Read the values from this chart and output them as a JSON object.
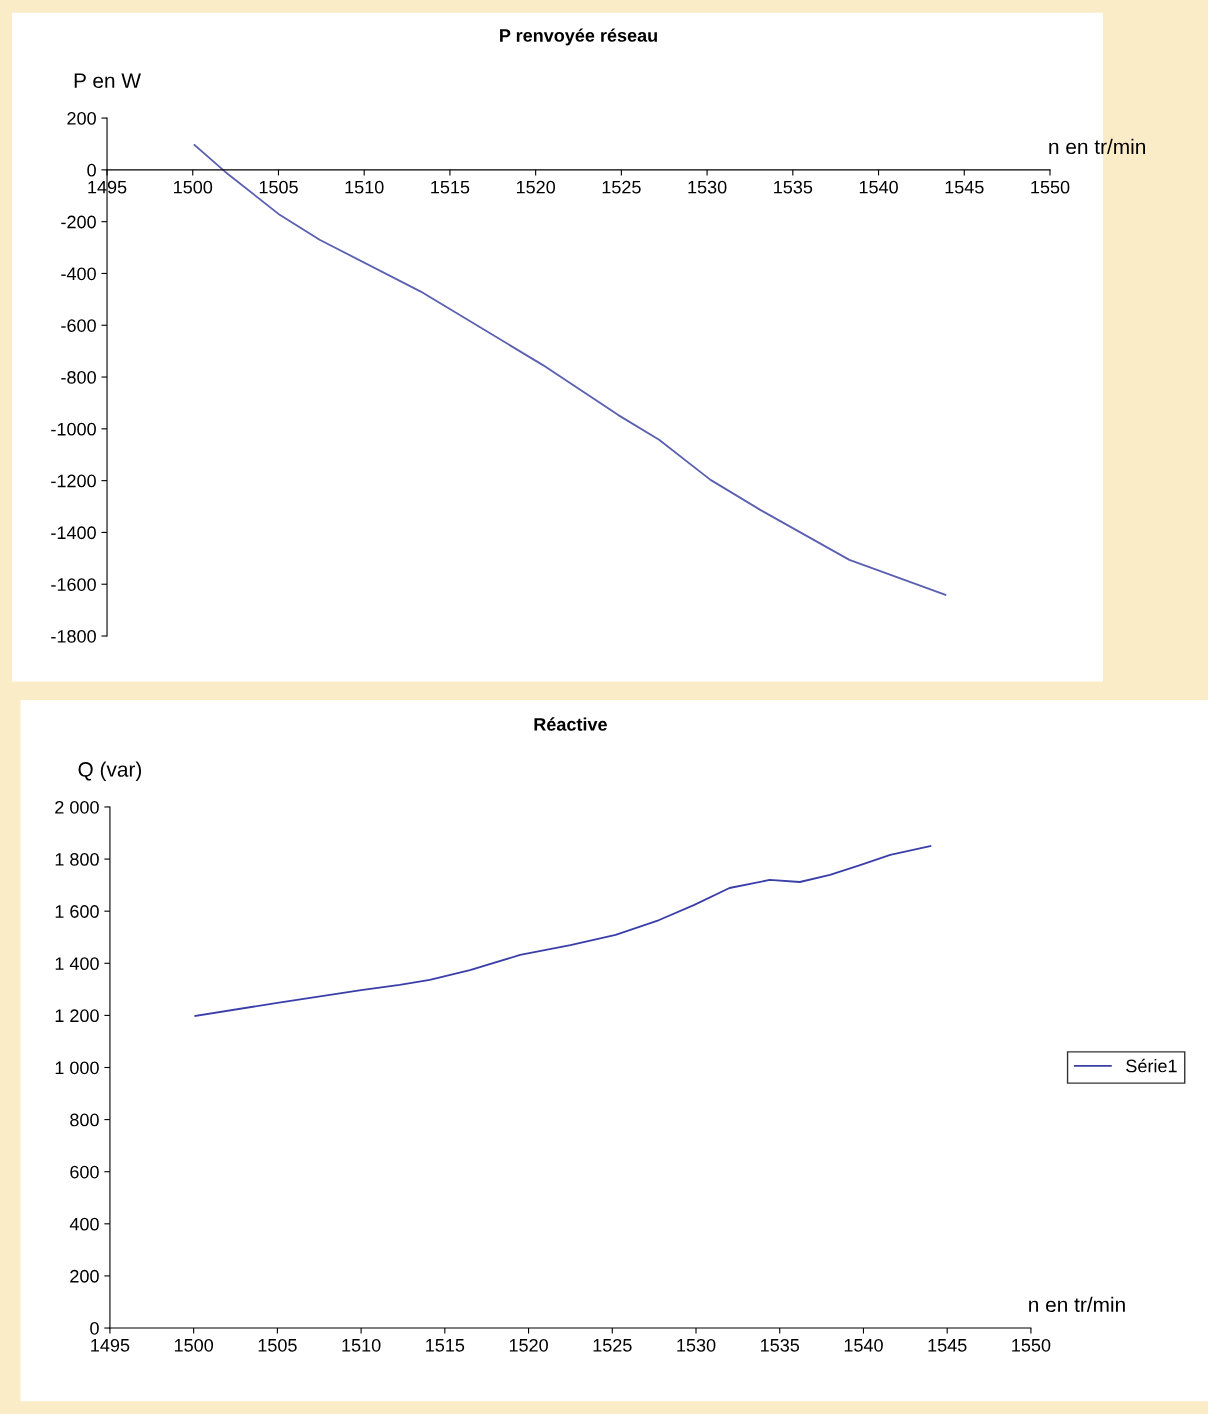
{
  "chart_data": [
    {
      "type": "line",
      "title": "P renvoyée réseau",
      "xlabel": "n en tr/min",
      "ylabel": "P en W",
      "grid": false,
      "legend": false,
      "xlim": [
        1495,
        1550
      ],
      "xticks": [
        1495,
        1500,
        1505,
        1510,
        1515,
        1520,
        1525,
        1530,
        1535,
        1540,
        1545,
        1550
      ],
      "ylim": [
        -1800,
        200
      ],
      "yticks": [
        200,
        0,
        -200,
        -400,
        -600,
        -800,
        -1000,
        -1200,
        -1400,
        -1600,
        -1800
      ],
      "series": [
        {
          "color": "#5a5fb0",
          "x": [
            1500.1,
            1501.9,
            1505.0,
            1507.4,
            1513.3,
            1520.4,
            1524.8,
            1527.2,
            1530.2,
            1533.1,
            1538.3,
            1543.9
          ],
          "values": [
            96,
            -8,
            -170,
            -270,
            -470,
            -753,
            -946,
            -1042,
            -1197,
            -1313,
            -1506,
            -1641
          ]
        }
      ]
    },
    {
      "type": "line",
      "title": "Réactive",
      "xlabel": "n en tr/min",
      "ylabel": "Q (var)",
      "grid": false,
      "legend": "right",
      "xlim": [
        1495,
        1550
      ],
      "xticks": [
        1495,
        1500,
        1505,
        1510,
        1515,
        1520,
        1525,
        1530,
        1535,
        1540,
        1545,
        1550
      ],
      "ylim": [
        0,
        2000
      ],
      "yticks": [
        0,
        200,
        400,
        600,
        800,
        {
          "value": 1000,
          "label": "1 000"
        },
        {
          "value": 1200,
          "label": "1 200"
        },
        {
          "value": 1400,
          "label": "1 400"
        },
        {
          "value": 1600,
          "label": "1 600"
        },
        {
          "value": 1800,
          "label": "1 800"
        },
        {
          "value": 2000,
          "label": "2 000"
        }
      ],
      "series": [
        {
          "name": "Série1",
          "color": "#3a3fa8",
          "x": [
            1500.1,
            1505.0,
            1510.0,
            1512.3,
            1514.1,
            1516.5,
            1519.5,
            1522.5,
            1525.2,
            1527.8,
            1529.9,
            1532.0,
            1534.4,
            1536.2,
            1538.0,
            1539.8,
            1541.6,
            1544.0
          ],
          "values": [
            1198,
            1248,
            1297,
            1317,
            1336,
            1374,
            1432,
            1470,
            1509,
            1566,
            1624,
            1689,
            1720,
            1712,
            1739,
            1777,
            1816,
            1850
          ]
        }
      ]
    }
  ]
}
